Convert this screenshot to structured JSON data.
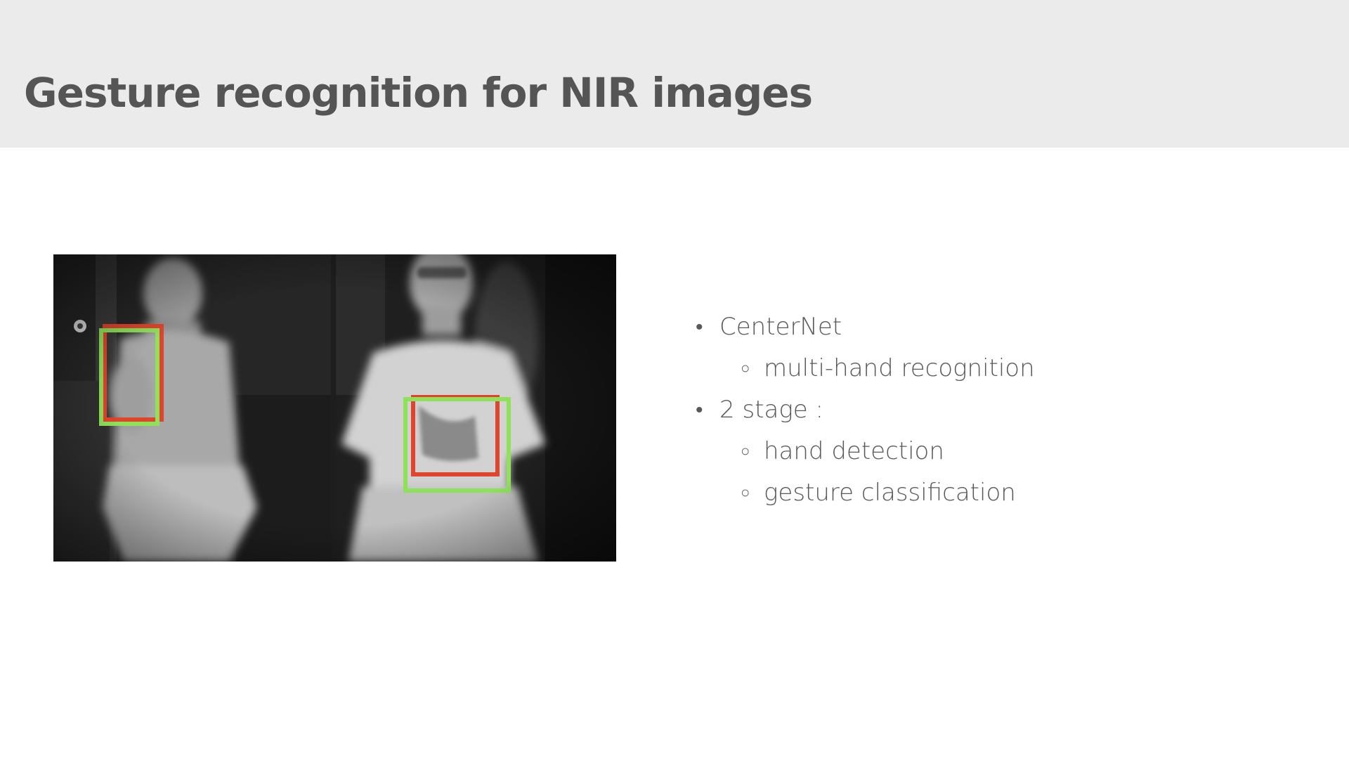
{
  "slide": {
    "title": "Gesture recognition for NIR images",
    "header_background": "#ebebeb",
    "text_color": "#555555"
  },
  "figure": {
    "type": "NIR camera frames with hand detection boxes",
    "box_colors": {
      "detection": "#8fe15a",
      "ground_truth": "#e0442c"
    }
  },
  "bullets": [
    {
      "level": 1,
      "marker": "•",
      "text": "CenterNet"
    },
    {
      "level": 2,
      "marker": "○",
      "text": "multi-hand recognition"
    },
    {
      "level": 1,
      "marker": "•",
      "text": "2 stage :"
    },
    {
      "level": 2,
      "marker": "○",
      "text": "hand detection"
    },
    {
      "level": 2,
      "marker": "○",
      "text": "gesture classification"
    }
  ]
}
